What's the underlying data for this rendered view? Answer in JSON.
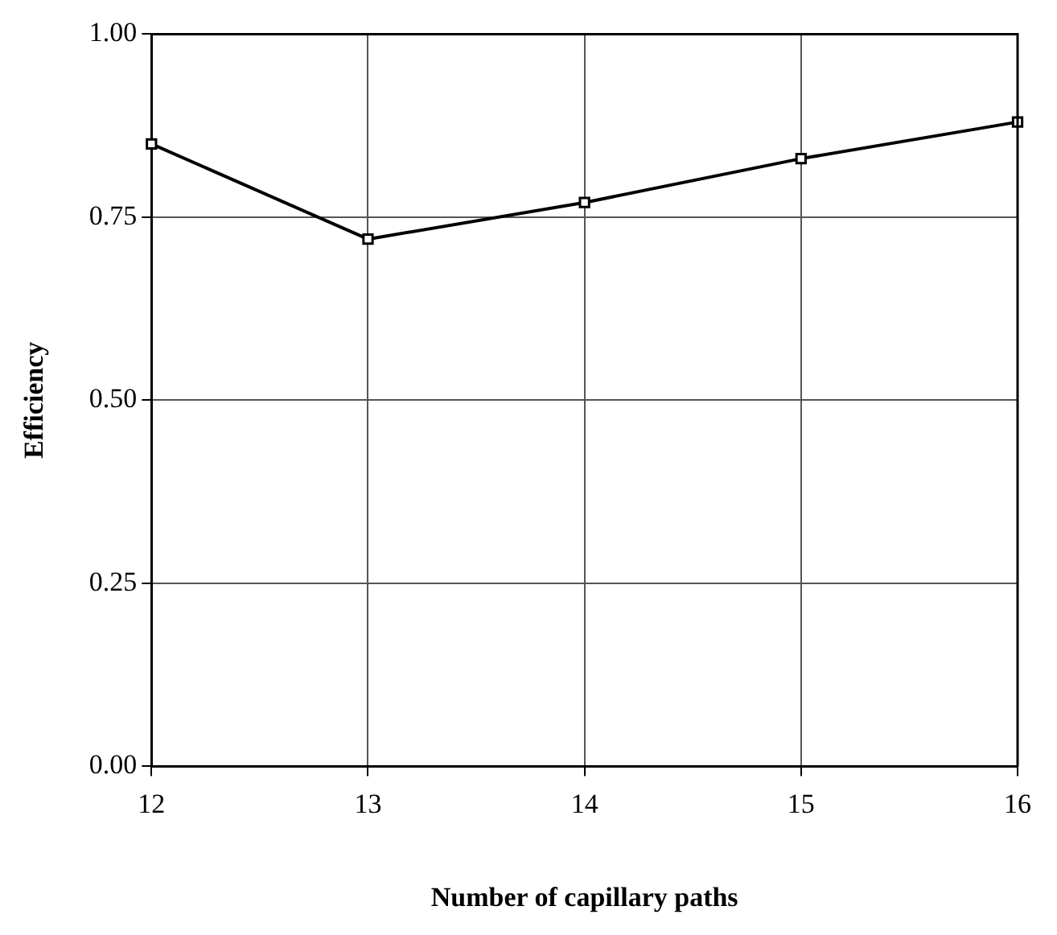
{
  "chart_data": {
    "type": "line",
    "xlabel": "Number of capillary paths",
    "ylabel": "Efficiency",
    "x": [
      12,
      13,
      14,
      15,
      16
    ],
    "series": [
      {
        "color": "#000000",
        "values": [
          0.85,
          0.72,
          0.77,
          0.83,
          0.88
        ]
      }
    ],
    "xlim": [
      12,
      16
    ],
    "xticks": [
      12,
      13,
      14,
      15,
      16
    ],
    "ylim": [
      0,
      1
    ],
    "yticks": [
      {
        "value": 0,
        "label": "0.00"
      },
      {
        "value": 0.25,
        "label": "0.25"
      },
      {
        "value": 0.5,
        "label": "0.50"
      },
      {
        "value": 0.75,
        "label": "0.75"
      },
      {
        "value": 1,
        "label": "1.00"
      }
    ],
    "grid": true,
    "legend": false,
    "marker": "square",
    "line_style": "solid"
  }
}
